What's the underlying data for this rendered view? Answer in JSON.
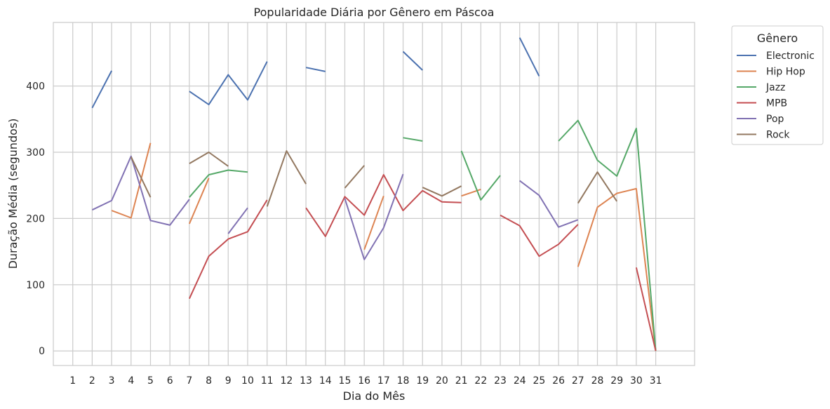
{
  "chart_data": {
    "type": "line",
    "title": "Popularidade Diária por Gênero em Páscoa",
    "xlabel": "Dia do Mês",
    "ylabel": "Duração Média (segundos)",
    "x": [
      1,
      2,
      3,
      4,
      5,
      6,
      7,
      8,
      9,
      10,
      11,
      12,
      13,
      14,
      15,
      16,
      17,
      18,
      19,
      20,
      21,
      22,
      23,
      24,
      25,
      26,
      27,
      28,
      29,
      30,
      31
    ],
    "xlim": [
      0,
      33
    ],
    "ylim": [
      -22,
      496
    ],
    "yticks": [
      0,
      100,
      200,
      300,
      400
    ],
    "grid": true,
    "legend": {
      "title": "Gênero",
      "placement": "outside-top-right"
    },
    "series": [
      {
        "name": "Electronic",
        "color": "#4c72b0",
        "values": [
          null,
          367,
          423,
          null,
          null,
          null,
          392,
          372,
          417,
          379,
          437,
          null,
          428,
          422,
          null,
          null,
          null,
          452,
          424,
          null,
          null,
          null,
          null,
          473,
          415,
          null,
          null,
          null,
          null,
          null,
          null
        ]
      },
      {
        "name": "Hip Hop",
        "color": "#dd8452",
        "values": [
          null,
          null,
          212,
          201,
          314,
          null,
          192,
          261,
          null,
          null,
          null,
          null,
          null,
          null,
          null,
          153,
          234,
          null,
          null,
          null,
          234,
          244,
          null,
          null,
          null,
          null,
          127,
          217,
          238,
          245,
          0
        ]
      },
      {
        "name": "Jazz",
        "color": "#55a868",
        "values": [
          null,
          null,
          null,
          null,
          null,
          null,
          232,
          266,
          273,
          270,
          null,
          null,
          null,
          null,
          null,
          null,
          null,
          322,
          317,
          null,
          302,
          228,
          265,
          null,
          null,
          317,
          348,
          288,
          264,
          336,
          0
        ]
      },
      {
        "name": "MPB",
        "color": "#c44e52",
        "values": [
          null,
          null,
          null,
          null,
          null,
          null,
          79,
          143,
          169,
          180,
          228,
          null,
          216,
          173,
          233,
          205,
          266,
          212,
          242,
          225,
          224,
          null,
          205,
          189,
          143,
          161,
          191,
          null,
          null,
          126,
          0
        ]
      },
      {
        "name": "Pop",
        "color": "#8172b3",
        "values": [
          null,
          213,
          227,
          294,
          197,
          190,
          229,
          null,
          177,
          216,
          null,
          null,
          null,
          null,
          230,
          138,
          186,
          267,
          null,
          null,
          null,
          null,
          null,
          257,
          235,
          187,
          198,
          null,
          null,
          null,
          null
        ]
      },
      {
        "name": "Rock",
        "color": "#937860",
        "values": [
          null,
          null,
          null,
          293,
          232,
          null,
          283,
          300,
          279,
          null,
          218,
          302,
          252,
          null,
          246,
          280,
          null,
          null,
          247,
          234,
          249,
          null,
          null,
          null,
          null,
          null,
          223,
          270,
          226,
          null,
          null
        ]
      }
    ]
  }
}
